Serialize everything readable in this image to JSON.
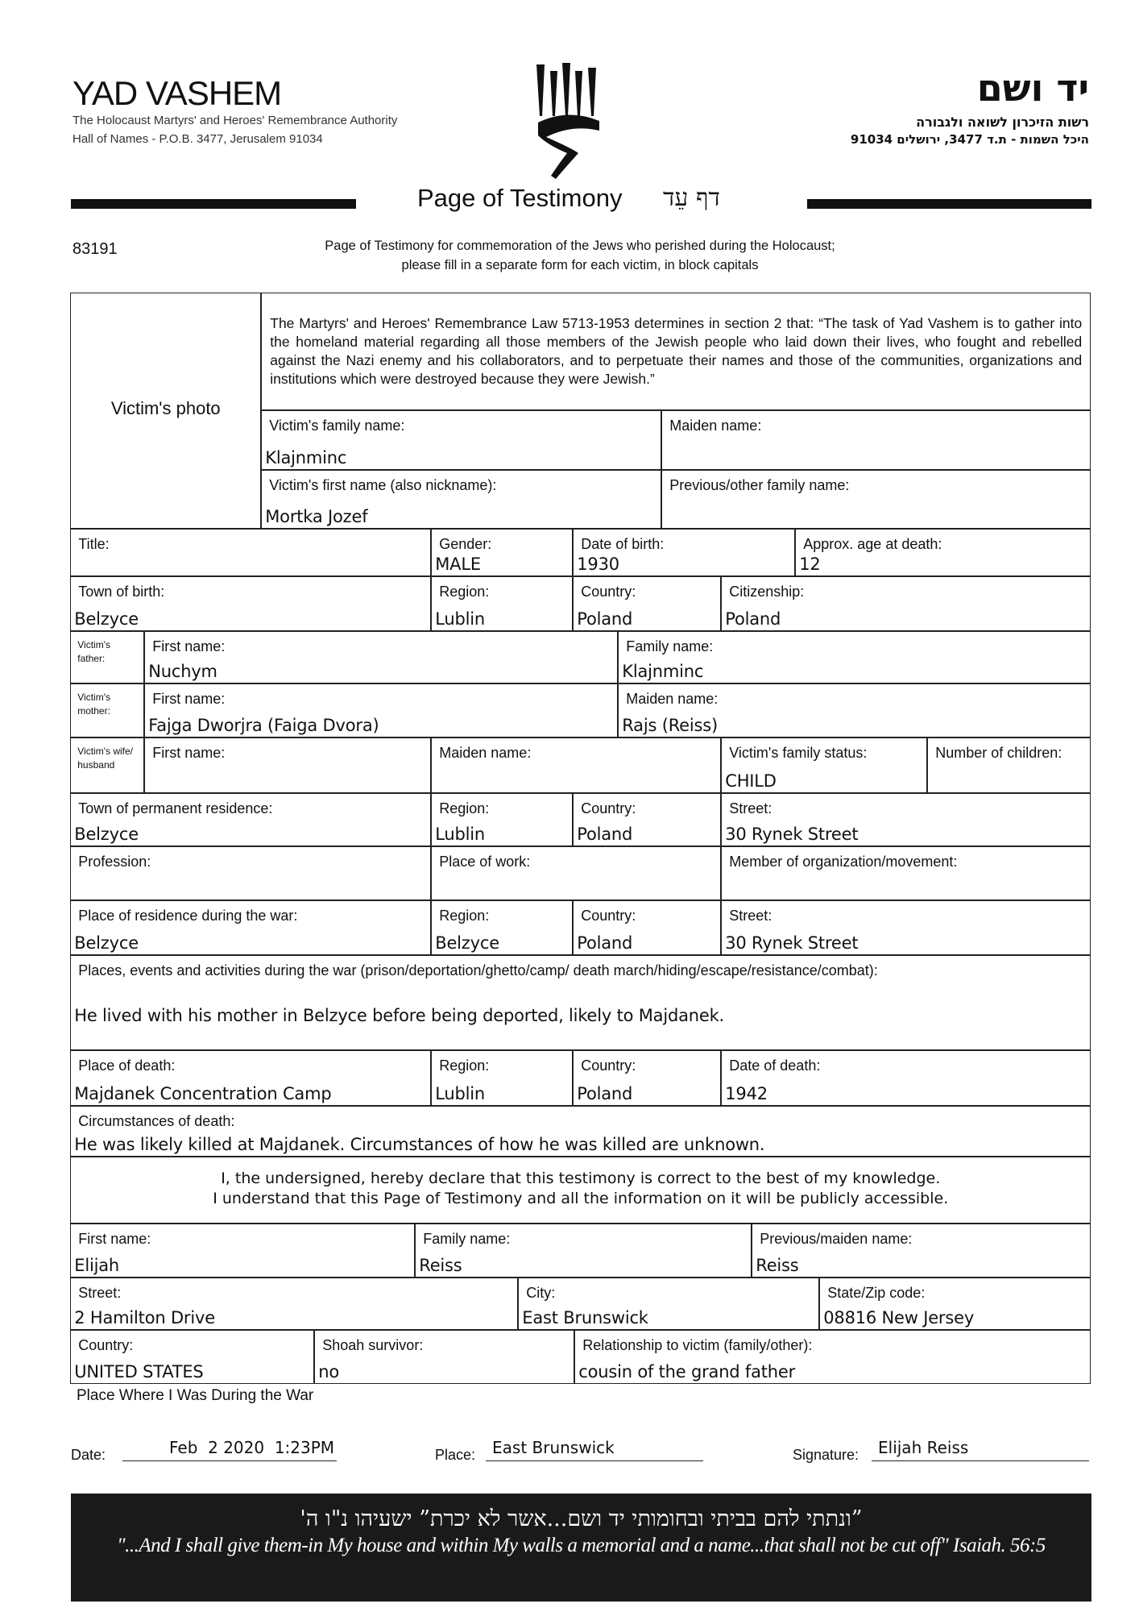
{
  "header": {
    "org_name": "YAD VASHEM",
    "org_sub1": "The Holocaust Martyrs' and Heroes' Remembrance Authority",
    "org_sub2": "Hall of Names - P.O.B. 3477, Jerusalem 91034",
    "org_name_he": "יד ושם",
    "org_sub1_he": "רשות הזיכרון לשואה ולגבורה",
    "org_sub2_he": "היכל השמות - ת.ד 3477, ירושלים 91034",
    "logo": "yad-vashem-menorah-logo",
    "title": "Page of Testimony",
    "title_he": "דף עֵד",
    "form_number": "83191",
    "instructions1": "Page of Testimony for commemoration of the Jews who perished during the Holocaust;",
    "instructions2": "please fill in a separate form for each victim, in block capitals"
  },
  "victim": {
    "photo_label": "Victim's photo",
    "law_text": "The Martyrs' and Heroes' Remembrance Law 5713-1953 determines in section 2 that: “The task of Yad Vashem is to gather into the homeland material regarding all those members of the Jewish people who laid down their lives, who fought and rebelled against the Nazi enemy and his collaborators, and to perpetuate their names and those of the communities, organizations and institutions which were destroyed because they were Jewish.”",
    "family_name": {
      "label": "Victim's family name:",
      "value": "Klajnminc"
    },
    "maiden_name": {
      "label": "Maiden name:",
      "value": ""
    },
    "first_name": {
      "label": "Victim's first name (also nickname):",
      "value": "Mortka Jozef"
    },
    "other_name": {
      "label": "Previous/other family name:",
      "value": ""
    },
    "title": {
      "label": "Title:",
      "value": ""
    },
    "gender": {
      "label": "Gender:",
      "value": "MALE"
    },
    "dob": {
      "label": "Date of birth:",
      "value": "1930"
    },
    "age": {
      "label": "Approx. age at death:",
      "value": "12"
    },
    "town_birth": {
      "label": "Town of birth:",
      "value": "Belzyce"
    },
    "region_birth": {
      "label": "Region:",
      "value": "Lublin"
    },
    "country_birth": {
      "label": "Country:",
      "value": "Poland"
    },
    "citizenship": {
      "label": "Citizenship:",
      "value": "Poland"
    },
    "father_label": "Victim's father:",
    "father_first": {
      "label": "First name:",
      "value": "Nuchym"
    },
    "father_family": {
      "label": "Family name:",
      "value": "Klajnminc"
    },
    "mother_label": "Victim's mother:",
    "mother_first": {
      "label": "First name:",
      "value": "Fajga Dworjra (Faiga Dvora)"
    },
    "mother_maiden": {
      "label": "Maiden name:",
      "value": "Rajs (Reiss)"
    },
    "spouse_label": "Victim's wife/ husband",
    "spouse_first": {
      "label": "First name:",
      "value": ""
    },
    "spouse_maiden": {
      "label": "Maiden name:",
      "value": ""
    },
    "family_status": {
      "label": "Victim's family status:",
      "value": "CHILD"
    },
    "children": {
      "label": "Number of children:",
      "value": ""
    },
    "residence": {
      "label": "Town of permanent residence:",
      "value": "Belzyce"
    },
    "res_region": {
      "label": "Region:",
      "value": "Lublin"
    },
    "res_country": {
      "label": "Country:",
      "value": "Poland"
    },
    "res_street": {
      "label": "Street:",
      "value": "30 Rynek Street"
    },
    "profession": {
      "label": "Profession:",
      "value": ""
    },
    "work": {
      "label": "Place of work:",
      "value": ""
    },
    "member": {
      "label": "Member of organization/movement:",
      "value": ""
    },
    "war_res": {
      "label": "Place of residence during the war:",
      "value": "Belzyce"
    },
    "war_region": {
      "label": "Region:",
      "value": "Belzyce"
    },
    "war_country": {
      "label": "Country:",
      "value": "Poland"
    },
    "war_street": {
      "label": "Street:",
      "value": "30 Rynek Street"
    },
    "events": {
      "label": "Places, events and activities during the war (prison/deportation/ghetto/camp/ death march/hiding/escape/resistance/combat):",
      "value": "He lived with his mother in Belzyce before being deported, likely to Majdanek."
    },
    "death_place": {
      "label": "Place of death:",
      "value": "Majdanek Concentration Camp"
    },
    "death_region": {
      "label": "Region:",
      "value": "Lublin"
    },
    "death_country": {
      "label": "Country:",
      "value": "Poland"
    },
    "death_date": {
      "label": "Date of death:",
      "value": "1942"
    },
    "circumstances": {
      "label": "Circumstances of death:",
      "value": "He was likely killed at Majdanek. Circumstances of how he was killed are unknown."
    }
  },
  "declaration": {
    "line1": "I, the undersigned, hereby declare that this testimony is correct to the best of my knowledge.",
    "line2": "I understand that this Page of Testimony and all the information on it will be publicly accessible."
  },
  "submitter": {
    "first": {
      "label": "First name:",
      "value": "Elijah"
    },
    "family": {
      "label": "Family name:",
      "value": "Reiss"
    },
    "prev": {
      "label": "Previous/maiden name:",
      "value": "Reiss"
    },
    "street": {
      "label": "Street:",
      "value": "2 Hamilton Drive"
    },
    "city": {
      "label": "City:",
      "value": "East Brunswick"
    },
    "state": {
      "label": "State/Zip code:",
      "value": "08816 New Jersey"
    },
    "country": {
      "label": "Country:",
      "value": "UNITED STATES"
    },
    "survivor": {
      "label": "Shoah survivor:",
      "value": "no"
    },
    "relationship": {
      "label": "Relationship to victim (family/other):",
      "value": "cousin of the grand father"
    },
    "war_place_label": "Place Where I Was During the War",
    "date": {
      "label": "Date:",
      "value": "Feb  2 2020  1:23PM"
    },
    "place": {
      "label": "Place:",
      "value": "East Brunswick"
    },
    "signature": {
      "label": "Signature:",
      "value": "Elijah Reiss"
    }
  },
  "footer": {
    "quote_he": "”ונתתי להם בביתי ובחומותי יד ושם...אשר לא יכרת” ישעיהו נ\"ו ה'",
    "quote_en": "\"...And I shall give them-in My house and within My walls a memorial and a name...that shall not be cut off\" Isaiah. 56:5"
  }
}
